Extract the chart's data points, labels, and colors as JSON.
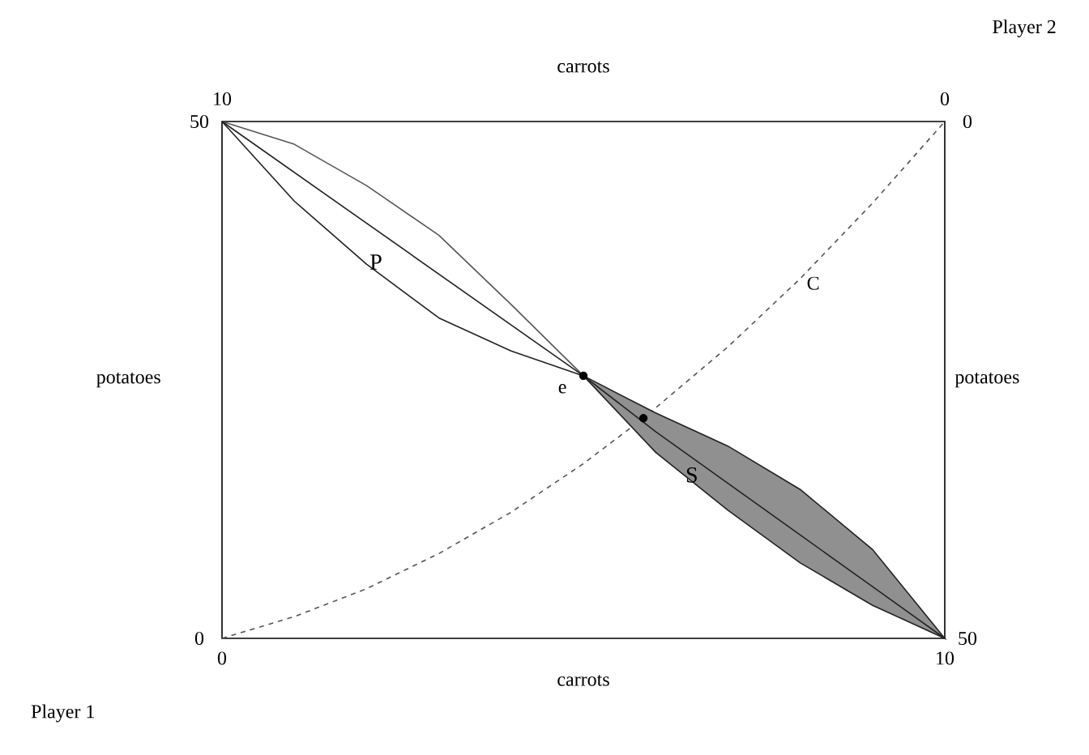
{
  "chart_data": {
    "type": "line",
    "xlabel": "carrots",
    "x2label": "carrots",
    "ylabel": "potatoes",
    "y2label": "potatoes",
    "xlim": [
      0,
      10
    ],
    "xticks": [
      0,
      10
    ],
    "ylim": [
      0,
      50
    ],
    "yticks": [
      0,
      50
    ],
    "x2lim": [
      10,
      0
    ],
    "x2ticks": [
      10,
      0
    ],
    "y2lim": [
      50,
      0
    ],
    "y2ticks": [
      0,
      50
    ],
    "grid": false,
    "series": [
      {
        "color": "#555555",
        "x": [
          0,
          1,
          2,
          3,
          4,
          5
        ],
        "values": [
          50,
          47.8,
          43.8,
          39,
          32.3,
          25.4
        ]
      },
      {
        "color": "#222222",
        "x": [
          0,
          5
        ],
        "values": [
          50,
          25.4
        ]
      },
      {
        "color": "#222222",
        "x": [
          0,
          1,
          2,
          3,
          4,
          5
        ],
        "values": [
          50,
          42.3,
          36.2,
          31,
          27.8,
          25.4
        ]
      },
      {
        "color": "#555555",
        "line_style": "dashed",
        "x": [
          0,
          1,
          2,
          3,
          4,
          5,
          5.83,
          7,
          8,
          9,
          10
        ],
        "values": [
          0,
          2.1,
          4.8,
          8.2,
          12.2,
          16.9,
          21.3,
          28.2,
          34.8,
          42.1,
          50
        ]
      },
      {
        "color": "#222222",
        "x": [
          5,
          6,
          7,
          8,
          9,
          10
        ],
        "values": [
          25.4,
          20,
          15,
          10,
          5,
          0
        ],
        "lower": [
          25.4,
          18,
          12.4,
          7.3,
          3.2,
          0
        ],
        "upper": [
          25.4,
          21.8,
          18.6,
          14.4,
          8.6,
          0
        ]
      },
      {
        "type": "scatter",
        "color": "#000000",
        "x": [
          5,
          5.83
        ],
        "values": [
          25.4,
          21.3
        ]
      }
    ],
    "annotations": [
      {
        "text": "P",
        "x": 2.13,
        "y": 36.4
      },
      {
        "text": "S",
        "x": 6.5,
        "y": 15.8
      },
      "C",
      "e",
      "Player 1",
      "Player 2"
    ]
  }
}
